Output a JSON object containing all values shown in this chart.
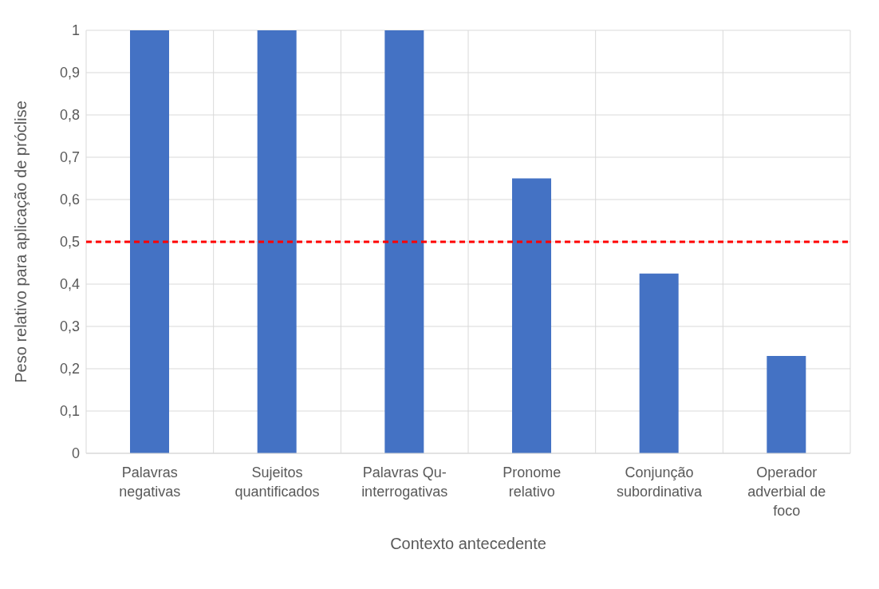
{
  "chart_data": {
    "type": "bar",
    "categories": [
      "Palavras negativas",
      "Sujeitos quantificados",
      "Palavras Qu-interrogativas",
      "Pronome relativo",
      "Conjunção subordinativa",
      "Operador adverbial de foco"
    ],
    "values": [
      1,
      1,
      1,
      0.65,
      0.425,
      0.23
    ],
    "color": "#4472c4",
    "xlabel": "Contexto antecedente",
    "ylabel": "Peso relativo para aplicação de próclise",
    "ylim": [
      0,
      1
    ],
    "yticks": [
      {
        "value": 0,
        "label": "0"
      },
      {
        "value": 0.1,
        "label": "0,1"
      },
      {
        "value": 0.2,
        "label": "0,2"
      },
      {
        "value": 0.3,
        "label": "0,3"
      },
      {
        "value": 0.4,
        "label": "0,4"
      },
      {
        "value": 0.5,
        "label": "0,5"
      },
      {
        "value": 0.6,
        "label": "0,6"
      },
      {
        "value": 0.7,
        "label": "0,7"
      },
      {
        "value": 0.8,
        "label": "0,8"
      },
      {
        "value": 0.9,
        "label": "0,9"
      },
      {
        "value": 1,
        "label": "1"
      }
    ],
    "ref_lines": [
      {
        "axis": "y",
        "value": 0.5,
        "color": "#ff0000",
        "line_style": "dashed"
      }
    ],
    "grid": true,
    "legend": false
  }
}
